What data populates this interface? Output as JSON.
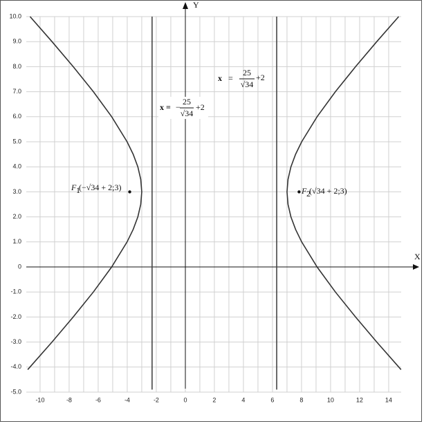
{
  "chart_data": {
    "type": "line",
    "x_label": "X",
    "y_label": "Y",
    "xlim": [
      -10.95,
      14.86
    ],
    "ylim": [
      -5,
      10
    ],
    "xticks": [
      -10,
      -8,
      -6,
      -4,
      -2,
      0,
      2,
      4,
      6,
      8,
      10,
      12,
      14
    ],
    "x_minor_ticks": [
      -9,
      -7,
      -5,
      -3,
      -1,
      1,
      3,
      5,
      7,
      9,
      11,
      13
    ],
    "yticks": [
      {
        "value": 10,
        "label": "10.0"
      },
      {
        "value": 9,
        "label": "9.0"
      },
      {
        "value": 8,
        "label": "8.0"
      },
      {
        "value": 7,
        "label": "7.0"
      },
      {
        "value": 6,
        "label": "6.0"
      },
      {
        "value": 5,
        "label": "5.0"
      },
      {
        "value": 4,
        "label": "4.0"
      },
      {
        "value": 3,
        "label": "3.0"
      },
      {
        "value": 2,
        "label": "2.0"
      },
      {
        "value": 1,
        "label": "1.0"
      },
      0,
      {
        "value": -1,
        "label": "-1.0"
      },
      {
        "value": -2,
        "label": "-2.0"
      },
      {
        "value": -3,
        "label": "-3.0"
      },
      {
        "value": -4,
        "label": "-4.0"
      },
      {
        "value": -5,
        "label": "-5.0"
      }
    ],
    "grid": true,
    "series": [
      {
        "color": "#333333",
        "x": [
          -10.85,
          -9.18,
          -7.72,
          -6.33,
          -5.07,
          -4.01,
          -3.59,
          -3.27,
          -3.07,
          -3,
          -3.07,
          -3.27,
          -3.59,
          -4.01,
          -5.07,
          -6.33,
          -7.72,
          -9.18,
          -10.69
        ],
        "y": [
          -4.1,
          -3,
          -2,
          -1,
          0,
          1,
          1.5,
          2,
          2.5,
          3,
          3.5,
          4,
          4.5,
          5,
          6,
          7,
          8,
          9,
          10
        ]
      },
      {
        "color": "#333333",
        "x": [
          14.85,
          13.18,
          11.72,
          10.33,
          9.07,
          8.01,
          7.59,
          7.27,
          7.07,
          7,
          7.07,
          7.27,
          7.59,
          8.01,
          9.07,
          10.33,
          11.72,
          13.18,
          14.69
        ],
        "y": [
          -4.1,
          -3,
          -2,
          -1,
          0,
          1,
          1.5,
          2,
          2.5,
          3,
          3.5,
          4,
          4.5,
          5,
          6,
          7,
          8,
          9,
          10
        ]
      },
      {
        "color": "#444444",
        "x": [
          -2.29,
          -2.29
        ],
        "y": [
          -4.9,
          10
        ]
      },
      {
        "color": "#444444",
        "x": [
          6.29,
          6.29
        ],
        "y": [
          -4.9,
          10
        ]
      }
    ],
    "points": [
      {
        "x": -3.83,
        "y": 3
      },
      {
        "x": 7.83,
        "y": 3
      }
    ],
    "directrix_labels": [
      {
        "lhs": "x =",
        "sign": "−",
        "num": "25",
        "den": "√34",
        "tail": "+2"
      },
      {
        "lhs": "x",
        "eq": "=",
        "num": "25",
        "den": "√34",
        "tail": "+2"
      }
    ],
    "focus_labels": [
      {
        "name": "F",
        "sub": "1",
        "text": "(−√34 + 2;3)"
      },
      {
        "name": "F",
        "sub": "2",
        "text": "(√34 + 2;3)"
      }
    ]
  }
}
